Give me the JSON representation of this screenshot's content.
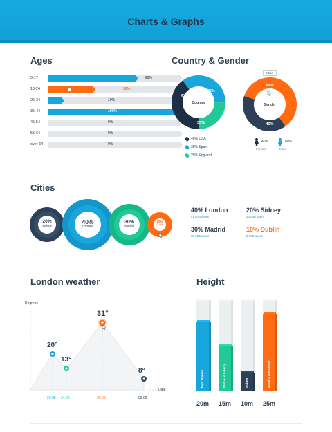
{
  "header": {
    "title": "Charts & Graphs"
  },
  "ages": {
    "title": "Ages",
    "rows": [
      {
        "label": "0-17",
        "value": "60%",
        "fill": 0.67,
        "color": "#18a6dc",
        "valcolor": "#4a5663"
      },
      {
        "label": "18-24",
        "value": "30%",
        "fill": 0.35,
        "color": "#ff6a13",
        "valcolor": "#ff6a13",
        "active": true
      },
      {
        "label": "25-34",
        "value": "10%",
        "fill": 0.12,
        "color": "#18a6dc",
        "valcolor": "#4a5663"
      },
      {
        "label": "35-44",
        "value": "100%",
        "fill": 1.0,
        "color": "#18a6dc",
        "valcolor": "#ffffff"
      },
      {
        "label": "45-54",
        "value": "0%",
        "fill": 0,
        "color": "#18a6dc",
        "valcolor": "#4a5663"
      },
      {
        "label": "55-64",
        "value": "0%",
        "fill": 0,
        "color": "#18a6dc",
        "valcolor": "#4a5663"
      },
      {
        "label": "over 64",
        "value": "0%",
        "fill": 0,
        "color": "#18a6dc",
        "valcolor": "#4a5663"
      }
    ]
  },
  "country_gender": {
    "title": "Country & Gender",
    "country_center": "Country",
    "country_labels": {
      "usa": "40%",
      "spain": "35%",
      "england": "25%"
    },
    "country_legend": [
      {
        "text": "40% USA",
        "color": "#1d2f44"
      },
      {
        "text": "35% Spain",
        "color": "#18a6dc"
      },
      {
        "text": "25% England",
        "color": "#20c997"
      }
    ],
    "gender_center": "Gender",
    "gender_tooltip": "Male",
    "gender_labels": {
      "male": "60%",
      "female": "40%"
    },
    "gender_legend": [
      {
        "pct": "40%",
        "label": "Female",
        "color": "#1d2f44"
      },
      {
        "pct": "60%",
        "label": "Male",
        "color": "#18a6dc"
      }
    ]
  },
  "cities": {
    "title": "Cities",
    "bubbles": [
      {
        "pct": "20%",
        "name": "Sidney",
        "color": "#2d4058"
      },
      {
        "pct": "40%",
        "name": "London",
        "color": "#18a6dc"
      },
      {
        "pct": "30%",
        "name": "Madrid",
        "color": "#20c997"
      },
      {
        "pct": "10%",
        "name": "Dublin",
        "color": "#ff6a13"
      }
    ],
    "stats": [
      {
        "title": "40% London",
        "sub": "41 676 users",
        "color": "#2d3e50"
      },
      {
        "title": "20% Sidney",
        "sub": "20 000 users",
        "color": "#2d3e50"
      },
      {
        "title": "30% Madrid",
        "sub": "30 656 users",
        "color": "#2d3e50"
      },
      {
        "title": "10% Dublin",
        "sub": "9 989 users",
        "color": "#ff6a13"
      }
    ]
  },
  "weather": {
    "title": "London weather",
    "y_axis_label": "Degrees",
    "x_axis_label": "Date",
    "points": [
      {
        "temp": "20°",
        "date": "20.08",
        "color": "#18a6dc"
      },
      {
        "temp": "13°",
        "date": "24.08",
        "color": "#20c997"
      },
      {
        "temp": "31°",
        "date": "30.08",
        "color": "#ff6a13"
      },
      {
        "temp": "8°",
        "date": "08.09",
        "color": "#2d4058"
      }
    ]
  },
  "height": {
    "title": "Height",
    "bars": [
      {
        "name": "Tech Towers",
        "value": "20m",
        "fill": 0.77,
        "color": "#18a6dc"
      },
      {
        "name": "Statue of Liberty",
        "value": "15m",
        "fill": 0.5,
        "color": "#20c997"
      },
      {
        "name": "Bigben",
        "value": "10m",
        "fill": 0.2,
        "color": "#2d4058"
      },
      {
        "name": "Dubai Trade Center",
        "value": "25m",
        "fill": 0.85,
        "color": "#ff6a13"
      }
    ]
  }
}
